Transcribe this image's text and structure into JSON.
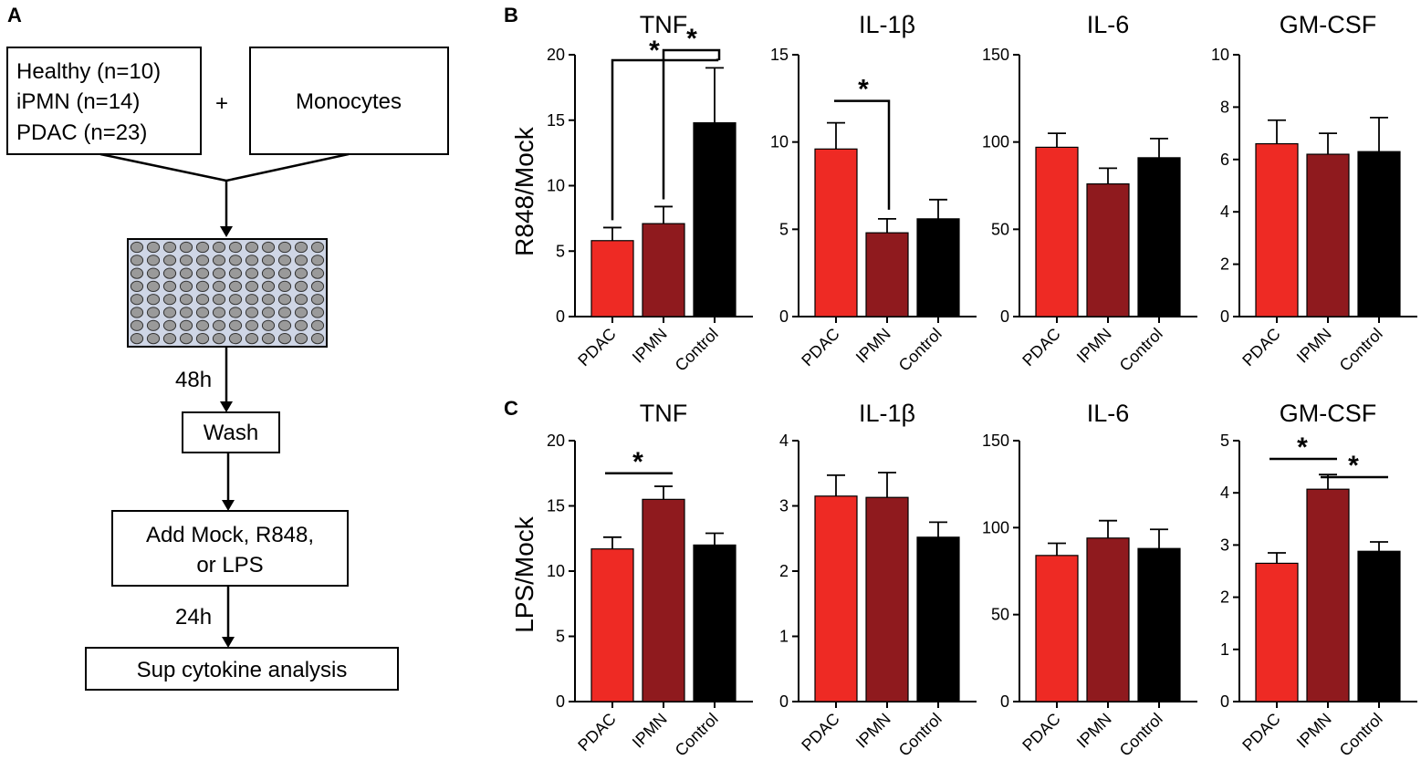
{
  "panel_a": {
    "letter": "A",
    "groups": [
      "Healthy (n=10)",
      "iPMN (n=14)",
      "PDAC (n=23)"
    ],
    "plus": "+",
    "cells": "Monocytes",
    "step1_time": "48h",
    "wash": "Wash",
    "add_line1": "Add Mock, R848,",
    "add_line2": "or LPS",
    "step2_time": "24h",
    "analysis": "Sup cytokine analysis"
  },
  "panel_b": {
    "letter": "B",
    "ylabel": "R848/Mock"
  },
  "panel_c": {
    "letter": "C",
    "ylabel": "LPS/Mock"
  },
  "colors": {
    "PDAC": "#ee2a24",
    "IPMN": "#8f1a1e",
    "Control": "#000000"
  },
  "chart_data": [
    {
      "type": "bar",
      "panel": "B",
      "title": "TNF",
      "ylabel": "R848/Mock",
      "categories": [
        "PDAC",
        "IPMN",
        "Control"
      ],
      "values": [
        5.8,
        7.1,
        14.8
      ],
      "errors": [
        1.0,
        1.3,
        4.2
      ],
      "ylim": [
        0,
        20
      ],
      "yticks": [
        0,
        5,
        10,
        15,
        20
      ],
      "significance": [
        {
          "pair": [
            0,
            2
          ],
          "label": "*"
        },
        {
          "pair": [
            1,
            2
          ],
          "label": "*"
        }
      ]
    },
    {
      "type": "bar",
      "panel": "B",
      "title": "IL-1β",
      "ylabel": "R848/Mock",
      "categories": [
        "PDAC",
        "IPMN",
        "Control"
      ],
      "values": [
        9.6,
        4.8,
        5.6
      ],
      "errors": [
        1.5,
        0.8,
        1.1
      ],
      "ylim": [
        0,
        15
      ],
      "yticks": [
        0,
        5,
        10,
        15
      ],
      "significance": [
        {
          "pair": [
            0,
            1
          ],
          "label": "*"
        }
      ]
    },
    {
      "type": "bar",
      "panel": "B",
      "title": "IL-6",
      "ylabel": "R848/Mock",
      "categories": [
        "PDAC",
        "IPMN",
        "Control"
      ],
      "values": [
        97,
        76,
        91
      ],
      "errors": [
        8,
        9,
        11
      ],
      "ylim": [
        0,
        150
      ],
      "yticks": [
        0,
        50,
        100,
        150
      ],
      "significance": []
    },
    {
      "type": "bar",
      "panel": "B",
      "title": "GM-CSF",
      "ylabel": "R848/Mock",
      "categories": [
        "PDAC",
        "IPMN",
        "Control"
      ],
      "values": [
        6.6,
        6.2,
        6.3
      ],
      "errors": [
        0.9,
        0.8,
        1.3
      ],
      "ylim": [
        0,
        10
      ],
      "yticks": [
        0,
        2,
        4,
        6,
        8,
        10
      ],
      "significance": []
    },
    {
      "type": "bar",
      "panel": "C",
      "title": "TNF",
      "ylabel": "LPS/Mock",
      "categories": [
        "PDAC",
        "IPMN",
        "Control"
      ],
      "values": [
        11.7,
        15.5,
        12.0
      ],
      "errors": [
        0.9,
        1.0,
        0.9
      ],
      "ylim": [
        0,
        20
      ],
      "yticks": [
        0,
        5,
        10,
        15,
        20
      ],
      "significance": [
        {
          "pair": [
            0,
            1
          ],
          "label": "*",
          "style": "line"
        }
      ]
    },
    {
      "type": "bar",
      "panel": "C",
      "title": "IL-1β",
      "ylabel": "LPS/Mock",
      "categories": [
        "PDAC",
        "IPMN",
        "Control"
      ],
      "values": [
        3.15,
        3.13,
        2.52
      ],
      "errors": [
        0.32,
        0.38,
        0.23
      ],
      "ylim": [
        0,
        4
      ],
      "yticks": [
        0,
        1,
        2,
        3,
        4
      ],
      "significance": []
    },
    {
      "type": "bar",
      "panel": "C",
      "title": "IL-6",
      "ylabel": "LPS/Mock",
      "categories": [
        "PDAC",
        "IPMN",
        "Control"
      ],
      "values": [
        84,
        94,
        88
      ],
      "errors": [
        7,
        10,
        11
      ],
      "ylim": [
        0,
        150
      ],
      "yticks": [
        0,
        50,
        100,
        150
      ],
      "significance": []
    },
    {
      "type": "bar",
      "panel": "C",
      "title": "GM-CSF",
      "ylabel": "LPS/Mock",
      "categories": [
        "PDAC",
        "IPMN",
        "Control"
      ],
      "values": [
        2.65,
        4.07,
        2.88
      ],
      "errors": [
        0.2,
        0.28,
        0.18
      ],
      "ylim": [
        0,
        5
      ],
      "yticks": [
        0,
        1,
        2,
        3,
        4,
        5
      ],
      "significance": [
        {
          "pair": [
            0,
            1
          ],
          "label": "*",
          "style": "line"
        },
        {
          "pair": [
            1,
            2
          ],
          "label": "*",
          "style": "line"
        }
      ]
    }
  ]
}
